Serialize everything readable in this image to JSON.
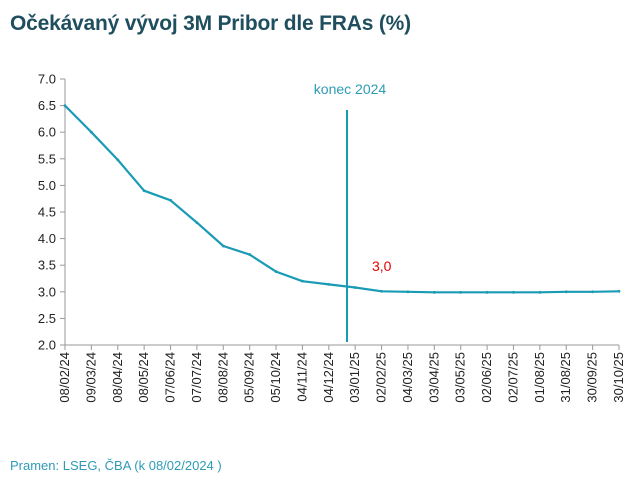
{
  "header": {
    "title": "Očekávaný vývoj 3M Pribor dle FRAs (%)"
  },
  "footer": {
    "source": "Pramen: LSEG, ČBA (k 08/02/2024 )"
  },
  "colors": {
    "line": "#1a9bb5",
    "title": "#1f4e5f",
    "source": "#2e9bb6",
    "label": "#e60000"
  },
  "chart_data": {
    "type": "line",
    "title": "Očekávaný vývoj 3M Pribor dle FRAs (%)",
    "xlabel": "",
    "ylabel": "",
    "ylim": [
      2.0,
      7.0
    ],
    "yticks": [
      "2.0",
      "2.5",
      "3.0",
      "3.5",
      "4.0",
      "4.5",
      "5.0",
      "5.5",
      "6.0",
      "6.5",
      "7.0"
    ],
    "x": [
      "08/02/24",
      "09/03/24",
      "08/04/24",
      "08/05/24",
      "07/06/24",
      "07/07/24",
      "08/08/24",
      "05/09/24",
      "05/10/24",
      "04/11/24",
      "04/12/24",
      "03/01/25",
      "02/02/25",
      "04/03/25",
      "03/04/25",
      "03/05/25",
      "02/06/25",
      "02/07/25",
      "01/08/25",
      "31/08/25",
      "30/09/25",
      "30/10/25"
    ],
    "series": [
      {
        "values": [
          6.5,
          6.0,
          5.48,
          4.9,
          4.72,
          4.3,
          3.86,
          3.7,
          3.38,
          3.2,
          3.14,
          3.08,
          3.01,
          3.0,
          2.99,
          2.99,
          2.99,
          2.99,
          2.99,
          3.0,
          3.0,
          3.01
        ]
      }
    ],
    "grid": false,
    "annotations": [
      {
        "text": "konec 2024",
        "type": "vertical-line",
        "x_between": [
          "04/12/24",
          "03/01/25"
        ]
      },
      {
        "text": "3,0",
        "type": "data-label"
      }
    ]
  }
}
